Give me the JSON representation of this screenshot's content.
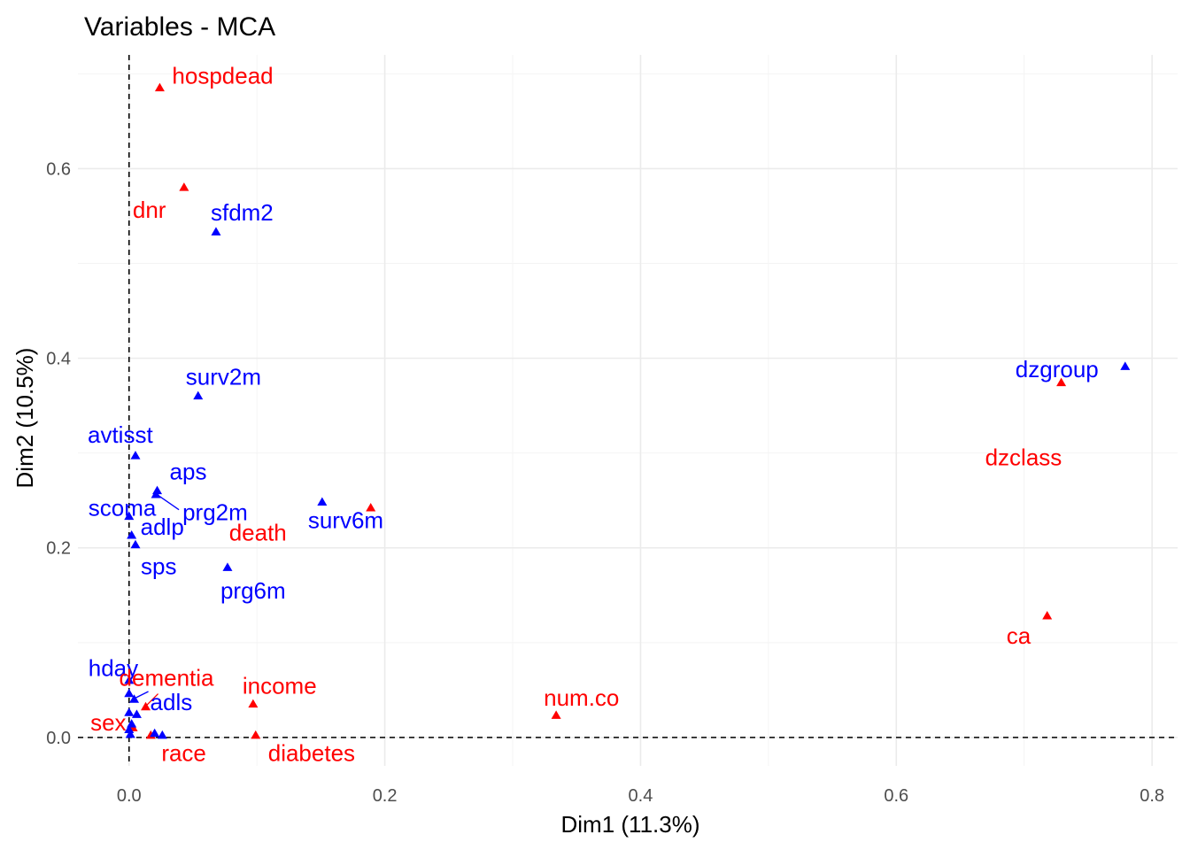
{
  "chart_data": {
    "type": "scatter",
    "title": "Variables - MCA",
    "xlabel": "Dim1 (11.3%)",
    "ylabel": "Dim2 (10.5%)",
    "xlim": [
      -0.04,
      0.82
    ],
    "ylim": [
      -0.03,
      0.72
    ],
    "x_ticks": [
      0.0,
      0.2,
      0.4,
      0.6,
      0.8
    ],
    "x_tick_labels": [
      "0.0",
      "0.2",
      "0.4",
      "0.6",
      "0.8"
    ],
    "y_ticks": [
      0.0,
      0.2,
      0.4,
      0.6
    ],
    "y_tick_labels": [
      "0.0",
      "0.2",
      "0.4",
      "0.6"
    ],
    "reference_lines": {
      "x": 0,
      "y": 0
    },
    "grid": true,
    "colors": {
      "red_group": "#ff0000",
      "blue_group": "#0000ff"
    },
    "points": [
      {
        "label": "hospdead",
        "x": 0.024,
        "y": 0.686,
        "color": "#ff0000"
      },
      {
        "label": "dnr",
        "x": 0.043,
        "y": 0.581,
        "color": "#ff0000"
      },
      {
        "label": "sfdm2",
        "x": 0.068,
        "y": 0.534,
        "color": "#0000ff"
      },
      {
        "label": "dzgroup",
        "x": 0.779,
        "y": 0.392,
        "color": "#0000ff"
      },
      {
        "label": "dzclass",
        "x": 0.729,
        "y": 0.375,
        "color": "#ff0000"
      },
      {
        "label": "surv2m",
        "x": 0.054,
        "y": 0.361,
        "color": "#0000ff"
      },
      {
        "label": "avtisst",
        "x": 0.005,
        "y": 0.298,
        "color": "#0000ff"
      },
      {
        "label": "aps",
        "x": 0.022,
        "y": 0.261,
        "color": "#0000ff"
      },
      {
        "label": "prg2m",
        "x": 0.021,
        "y": 0.257,
        "color": "#0000ff"
      },
      {
        "label": "surv6m",
        "x": 0.151,
        "y": 0.249,
        "color": "#0000ff"
      },
      {
        "label": "death",
        "x": 0.189,
        "y": 0.243,
        "color": "#ff0000"
      },
      {
        "label": "scoma",
        "x": 0.0,
        "y": 0.234,
        "color": "#0000ff"
      },
      {
        "label": "adlp",
        "x": 0.002,
        "y": 0.214,
        "color": "#0000ff"
      },
      {
        "label": "sps",
        "x": 0.005,
        "y": 0.204,
        "color": "#0000ff"
      },
      {
        "label": "prg6m",
        "x": 0.077,
        "y": 0.18,
        "color": "#0000ff"
      },
      {
        "label": "ca",
        "x": 0.718,
        "y": 0.129,
        "color": "#ff0000"
      },
      {
        "label": "hday",
        "x": 0.0,
        "y": 0.061,
        "color": "#0000ff"
      },
      {
        "label": "dementia",
        "x": 0.013,
        "y": 0.033,
        "color": "#ff0000"
      },
      {
        "label": "adls",
        "x": 0.004,
        "y": 0.041,
        "color": "#0000ff"
      },
      {
        "label": "income",
        "x": 0.097,
        "y": 0.036,
        "color": "#ff0000"
      },
      {
        "label": "num.co",
        "x": 0.334,
        "y": 0.024,
        "color": "#ff0000"
      },
      {
        "label": "sex",
        "x": 0.003,
        "y": 0.011,
        "color": "#ff0000"
      },
      {
        "label": "race",
        "x": 0.017,
        "y": 0.003,
        "color": "#ff0000"
      },
      {
        "label": "diabetes",
        "x": 0.099,
        "y": 0.003,
        "color": "#ff0000"
      },
      {
        "label": "",
        "x": 0.0,
        "y": 0.047,
        "color": "#0000ff"
      },
      {
        "label": "",
        "x": 0.006,
        "y": 0.025,
        "color": "#0000ff"
      },
      {
        "label": "",
        "x": 0.0,
        "y": 0.027,
        "color": "#0000ff"
      },
      {
        "label": "",
        "x": 0.002,
        "y": 0.015,
        "color": "#0000ff"
      },
      {
        "label": "",
        "x": 0.0,
        "y": 0.009,
        "color": "#0000ff"
      },
      {
        "label": "",
        "x": 0.001,
        "y": 0.004,
        "color": "#0000ff"
      },
      {
        "label": "",
        "x": 0.02,
        "y": 0.005,
        "color": "#0000ff"
      },
      {
        "label": "",
        "x": 0.026,
        "y": 0.003,
        "color": "#0000ff"
      }
    ]
  }
}
